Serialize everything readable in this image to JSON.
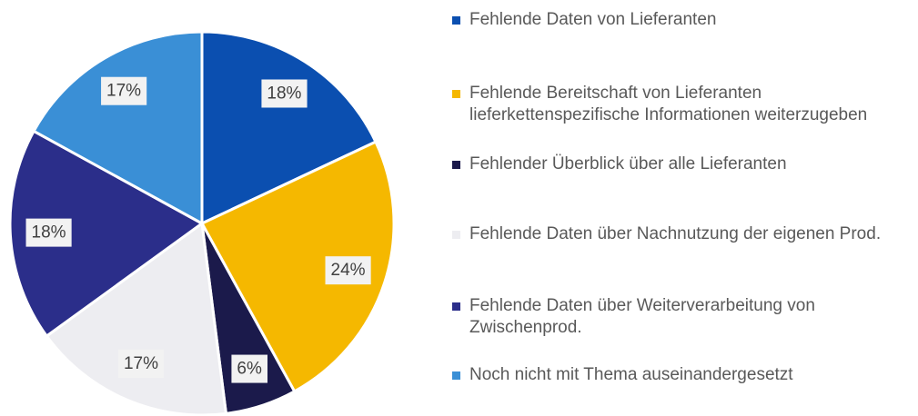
{
  "chart_data": {
    "type": "pie",
    "categories": [
      "Fehlende Daten von Lieferanten",
      "Fehlende Bereitschaft von Lieferanten lieferkettenspezifische Informationen weiterzugeben",
      "Fehlender Überblick über alle Lieferanten",
      "Fehlende Daten über Nachnutzung der eigenen Prod.",
      "Fehlende Daten über Weiterverarbeitung von Zwischenprod.",
      "Noch nicht mit Thema auseinandergesetzt"
    ],
    "values": [
      18,
      24,
      6,
      17,
      18,
      17
    ],
    "value_labels": [
      "18%",
      "24%",
      "6%",
      "17%",
      "18%",
      "17%"
    ],
    "colors": [
      "#0b4fb0",
      "#f5b800",
      "#1b1a4b",
      "#ededf1",
      "#2b2e8a",
      "#3a8fd6"
    ],
    "legend": "right"
  }
}
